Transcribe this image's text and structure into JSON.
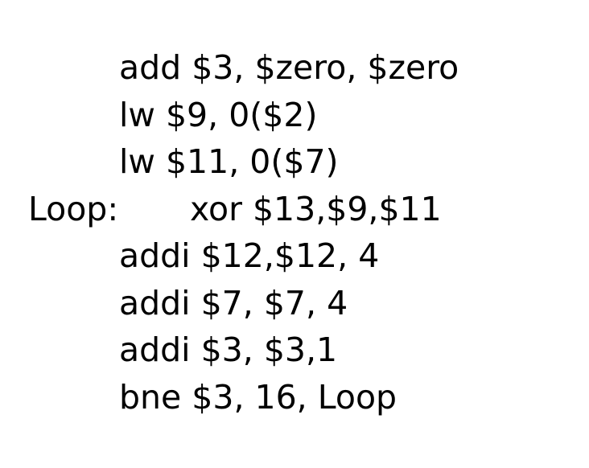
{
  "code": {
    "lines": [
      {
        "label": "",
        "instr": "add $3, $zero, $zero"
      },
      {
        "label": "",
        "instr": "lw $9, 0($2)"
      },
      {
        "label": "",
        "instr": "lw $11, 0($7)"
      },
      {
        "label": "Loop:",
        "instr": "xor $13,$9,$11"
      },
      {
        "label": "",
        "instr": "addi $12,$12, 4"
      },
      {
        "label": "",
        "instr": "addi $7, $7, 4"
      },
      {
        "label": "",
        "instr": "addi $3, $3,1"
      },
      {
        "label": "",
        "instr": "bne $3, 16, Loop"
      }
    ]
  }
}
